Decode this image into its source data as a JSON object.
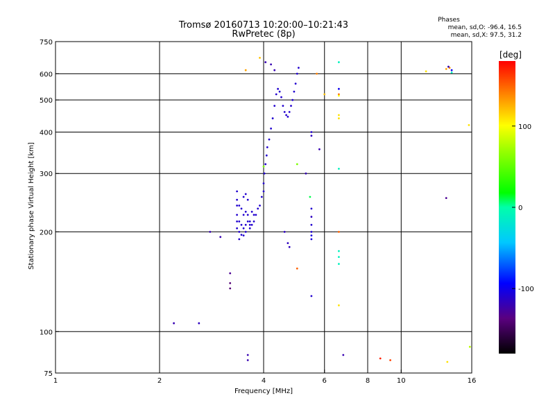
{
  "chart_data": {
    "type": "scatter",
    "title": "Tromsø 20160713 10:20:00–10:21:43",
    "subtitle": "RwPretec (8p)",
    "xlabel": "Frequency [MHz]",
    "ylabel": "Stationary phase Virtual Height [km]",
    "x_scale": "log",
    "y_scale": "log",
    "xlim": [
      1,
      16
    ],
    "ylim": [
      75,
      750
    ],
    "x_ticks": [
      1,
      2,
      4,
      6,
      8,
      10,
      16
    ],
    "y_ticks": [
      75,
      100,
      200,
      300,
      400,
      500,
      600,
      750
    ],
    "phase_info": {
      "heading": "Phases",
      "line1": "mean, sd,O: -96.4, 16.5",
      "line2": "mean, sd,X:  97.5, 31.2"
    },
    "colorbar": {
      "label": "[deg]",
      "min": -180,
      "max": 180,
      "ticks": [
        100,
        0,
        -100
      ]
    },
    "series": [
      {
        "points": [
          [
            2.2,
            106,
            -120
          ],
          [
            2.6,
            106,
            -115
          ],
          [
            2.8,
            200,
            -120
          ],
          [
            3.0,
            193,
            -120
          ],
          [
            3.2,
            150,
            -130
          ],
          [
            3.2,
            140,
            -140
          ],
          [
            3.2,
            135,
            -140
          ],
          [
            3.35,
            265,
            -110
          ],
          [
            3.35,
            250,
            -110
          ],
          [
            3.35,
            240,
            -110
          ],
          [
            3.35,
            225,
            -110
          ],
          [
            3.35,
            215,
            -110
          ],
          [
            3.35,
            205,
            -110
          ],
          [
            3.4,
            240,
            -110
          ],
          [
            3.4,
            215,
            -110
          ],
          [
            3.4,
            200,
            -110
          ],
          [
            3.4,
            190,
            -110
          ],
          [
            3.45,
            235,
            -110
          ],
          [
            3.45,
            210,
            -110
          ],
          [
            3.45,
            196,
            -110
          ],
          [
            3.5,
            255,
            -110
          ],
          [
            3.5,
            225,
            -110
          ],
          [
            3.5,
            205,
            -110
          ],
          [
            3.5,
            195,
            -110
          ],
          [
            3.55,
            260,
            -110
          ],
          [
            3.55,
            230,
            -110
          ],
          [
            3.55,
            210,
            -110
          ],
          [
            3.55,
            200,
            -110
          ],
          [
            3.6,
            250,
            -110
          ],
          [
            3.6,
            225,
            -110
          ],
          [
            3.6,
            215,
            -110
          ],
          [
            3.65,
            215,
            -110
          ],
          [
            3.65,
            205,
            -110
          ],
          [
            3.65,
            210,
            -110
          ],
          [
            3.7,
            210,
            -110
          ],
          [
            3.7,
            230,
            -110
          ],
          [
            3.75,
            215,
            -110
          ],
          [
            3.75,
            225,
            -110
          ],
          [
            3.8,
            225,
            -110
          ],
          [
            3.85,
            235,
            -110
          ],
          [
            3.9,
            240,
            -110
          ],
          [
            3.95,
            255,
            -110
          ],
          [
            4.0,
            265,
            -110
          ],
          [
            4.0,
            280,
            -110
          ],
          [
            4.02,
            300,
            -110
          ],
          [
            4.05,
            320,
            -110
          ],
          [
            4.08,
            340,
            -110
          ],
          [
            4.1,
            360,
            -110
          ],
          [
            4.15,
            380,
            -110
          ],
          [
            4.2,
            410,
            -110
          ],
          [
            4.25,
            440,
            -110
          ],
          [
            4.3,
            480,
            -110
          ],
          [
            4.35,
            520,
            -110
          ],
          [
            4.4,
            540,
            -110
          ],
          [
            4.45,
            530,
            -110
          ],
          [
            4.5,
            510,
            -110
          ],
          [
            4.55,
            480,
            -110
          ],
          [
            4.6,
            460,
            -110
          ],
          [
            4.65,
            450,
            -110
          ],
          [
            4.7,
            445,
            -110
          ],
          [
            4.75,
            460,
            -110
          ],
          [
            4.8,
            480,
            -110
          ],
          [
            4.85,
            500,
            -110
          ],
          [
            4.9,
            530,
            -110
          ],
          [
            4.95,
            560,
            -110
          ],
          [
            5.0,
            600,
            -110
          ],
          [
            5.05,
            625,
            -110
          ],
          [
            4.2,
            640,
            -120
          ],
          [
            4.3,
            615,
            -120
          ],
          [
            4.05,
            650,
            -120
          ],
          [
            4.6,
            200,
            -115
          ],
          [
            4.7,
            185,
            -115
          ],
          [
            4.75,
            180,
            -115
          ],
          [
            3.6,
            85,
            -120
          ],
          [
            3.6,
            82,
            -120
          ],
          [
            5.3,
            300,
            -120
          ],
          [
            5.5,
            400,
            -110
          ],
          [
            5.5,
            390,
            -115
          ],
          [
            5.8,
            355,
            -120
          ],
          [
            5.45,
            255,
            10
          ],
          [
            5.5,
            235,
            -110
          ],
          [
            5.5,
            222,
            -115
          ],
          [
            5.5,
            210,
            -110
          ],
          [
            5.5,
            200,
            -110
          ],
          [
            5.5,
            195,
            -105
          ],
          [
            5.5,
            190,
            -105
          ],
          [
            5.5,
            128,
            -110
          ],
          [
            5.0,
            155,
            150
          ],
          [
            6.6,
            650,
            -10
          ],
          [
            6.6,
            540,
            -100
          ],
          [
            6.6,
            520,
            150
          ],
          [
            6.6,
            515,
            100
          ],
          [
            6.6,
            450,
            110
          ],
          [
            6.6,
            440,
            110
          ],
          [
            6.6,
            310,
            -10
          ],
          [
            6.6,
            200,
            150
          ],
          [
            6.6,
            175,
            -10
          ],
          [
            6.6,
            168,
            -10
          ],
          [
            6.6,
            160,
            -10
          ],
          [
            6.6,
            120,
            110
          ],
          [
            6.8,
            85,
            -120
          ],
          [
            8.7,
            83,
            170
          ],
          [
            9.3,
            82,
            160
          ],
          [
            3.55,
            615,
            130
          ],
          [
            3.9,
            670,
            120
          ],
          [
            5.7,
            600,
            140
          ],
          [
            6.0,
            520,
            120
          ],
          [
            11.8,
            610,
            110
          ],
          [
            13.5,
            620,
            130
          ],
          [
            13.8,
            625,
            140
          ],
          [
            14.0,
            605,
            -10
          ],
          [
            14.0,
            615,
            -100
          ],
          [
            13.7,
            630,
            -120
          ],
          [
            15.7,
            420,
            110
          ],
          [
            13.5,
            253,
            -130
          ],
          [
            15.8,
            90,
            80
          ],
          [
            13.6,
            81,
            110
          ],
          [
            5.0,
            320,
            60
          ],
          [
            4.0,
            315,
            60
          ]
        ]
      }
    ]
  }
}
